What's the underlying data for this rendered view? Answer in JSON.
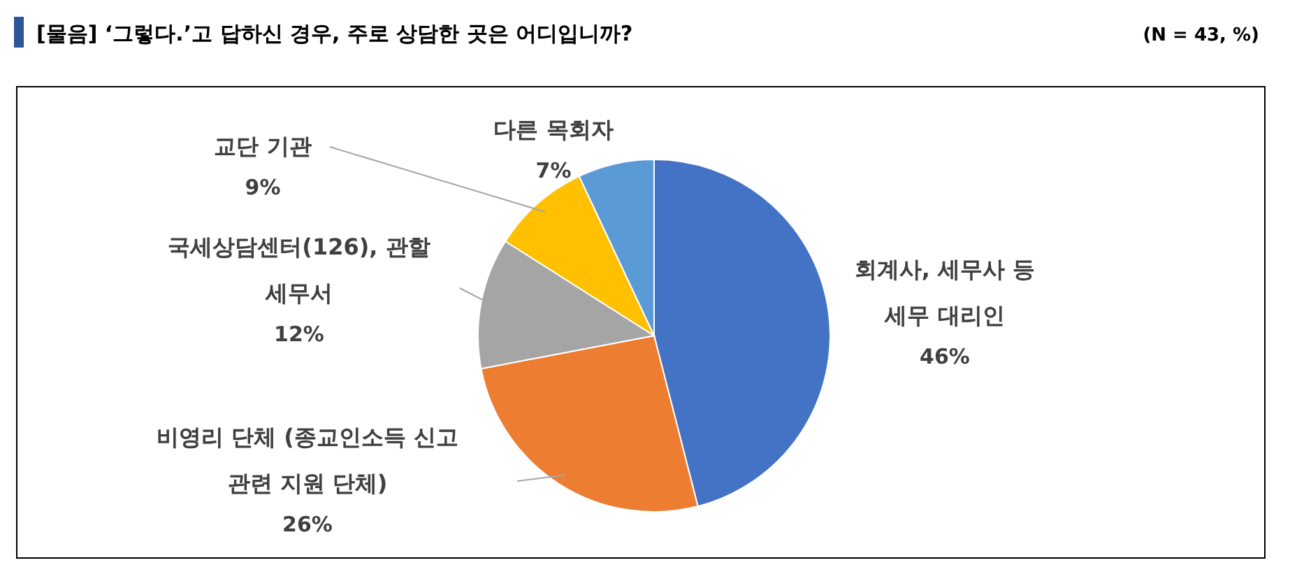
{
  "chart_data": {
    "type": "pie",
    "title": "[물음] ‘그렇다.’고 답하신 경우, 주로 상담한 곳은 어디입니까?",
    "annotations": [
      "(N = 43, %)"
    ],
    "categories": [
      "회계사, 세무사 등\n세무 대리인",
      "비영리 단체 (종교인소득 신고\n관련 지원 단체)",
      "국세상담센터(126), 관할\n세무서",
      "교단 기관",
      "다른 목회자"
    ],
    "values": [
      46,
      26,
      12,
      9,
      7
    ],
    "colors": [
      "#4472c4",
      "#ed7d31",
      "#a5a5a5",
      "#ffc000",
      "#5b9bd5"
    ],
    "value_labels": [
      "46%",
      "26%",
      "12%",
      "9%",
      "7%"
    ]
  }
}
